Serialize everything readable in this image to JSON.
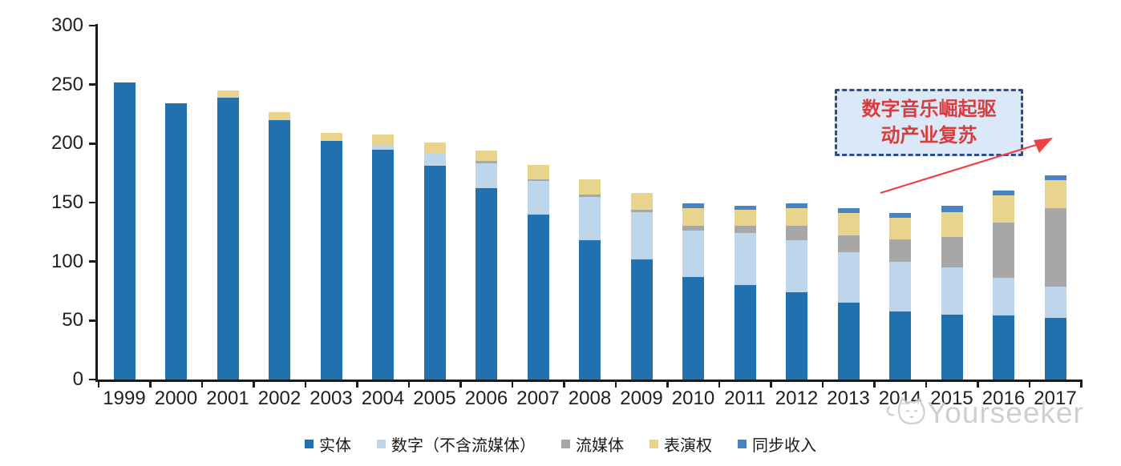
{
  "chart_data": {
    "type": "bar",
    "stacked": true,
    "title": "",
    "xlabel": "",
    "ylabel": "",
    "categories": [
      "1999",
      "2000",
      "2001",
      "2002",
      "2003",
      "2004",
      "2005",
      "2006",
      "2007",
      "2008",
      "2009",
      "2010",
      "2011",
      "2012",
      "2013",
      "2014",
      "2015",
      "2016",
      "2017"
    ],
    "series": [
      {
        "name": "实体",
        "color": "#2171ae",
        "values": [
          252,
          234,
          239,
          220,
          202,
          195,
          181,
          162,
          140,
          118,
          102,
          87,
          80,
          74,
          65,
          58,
          55,
          54,
          52
        ]
      },
      {
        "name": "数字（不含流媒体）",
        "color": "#bdd6ec",
        "values": [
          0,
          0,
          0,
          0,
          0,
          4,
          11,
          21,
          28,
          37,
          40,
          39,
          44,
          44,
          43,
          42,
          40,
          32,
          27
        ]
      },
      {
        "name": "流媒体",
        "color": "#a7a7a7",
        "values": [
          0,
          0,
          0,
          0,
          0,
          0,
          0,
          2,
          2,
          2,
          2,
          4,
          6,
          12,
          14,
          19,
          26,
          47,
          66
        ]
      },
      {
        "name": "表演权",
        "color": "#e9d48e",
        "values": [
          0,
          0,
          6,
          7,
          7,
          9,
          9,
          9,
          12,
          13,
          14,
          15,
          14,
          15,
          19,
          18,
          21,
          23,
          24
        ]
      },
      {
        "name": "同步收入",
        "color": "#4a84c0",
        "values": [
          0,
          0,
          0,
          0,
          0,
          0,
          0,
          0,
          0,
          0,
          0,
          4,
          3,
          4,
          4,
          4,
          5,
          4,
          4
        ]
      }
    ],
    "totals": [
      252,
      234,
      245,
      227,
      209,
      208,
      201,
      194,
      182,
      170,
      158,
      149,
      147,
      149,
      145,
      141,
      147,
      160,
      173
    ],
    "ylim": [
      0,
      300
    ],
    "yticks": [
      0,
      50,
      100,
      150,
      200,
      250,
      300
    ],
    "grid": false,
    "legend_position": "bottom"
  },
  "annotation": {
    "line1": "数字音乐崛起驱",
    "line2": "动产业复苏",
    "text_color": "#d93c3e",
    "border_color": "#2f4c8a",
    "fill_color": "#dbe8f7",
    "arrow_color": "#ee4145"
  },
  "watermark": {
    "text": "Yourseeker",
    "color": "#c7c7c7"
  }
}
